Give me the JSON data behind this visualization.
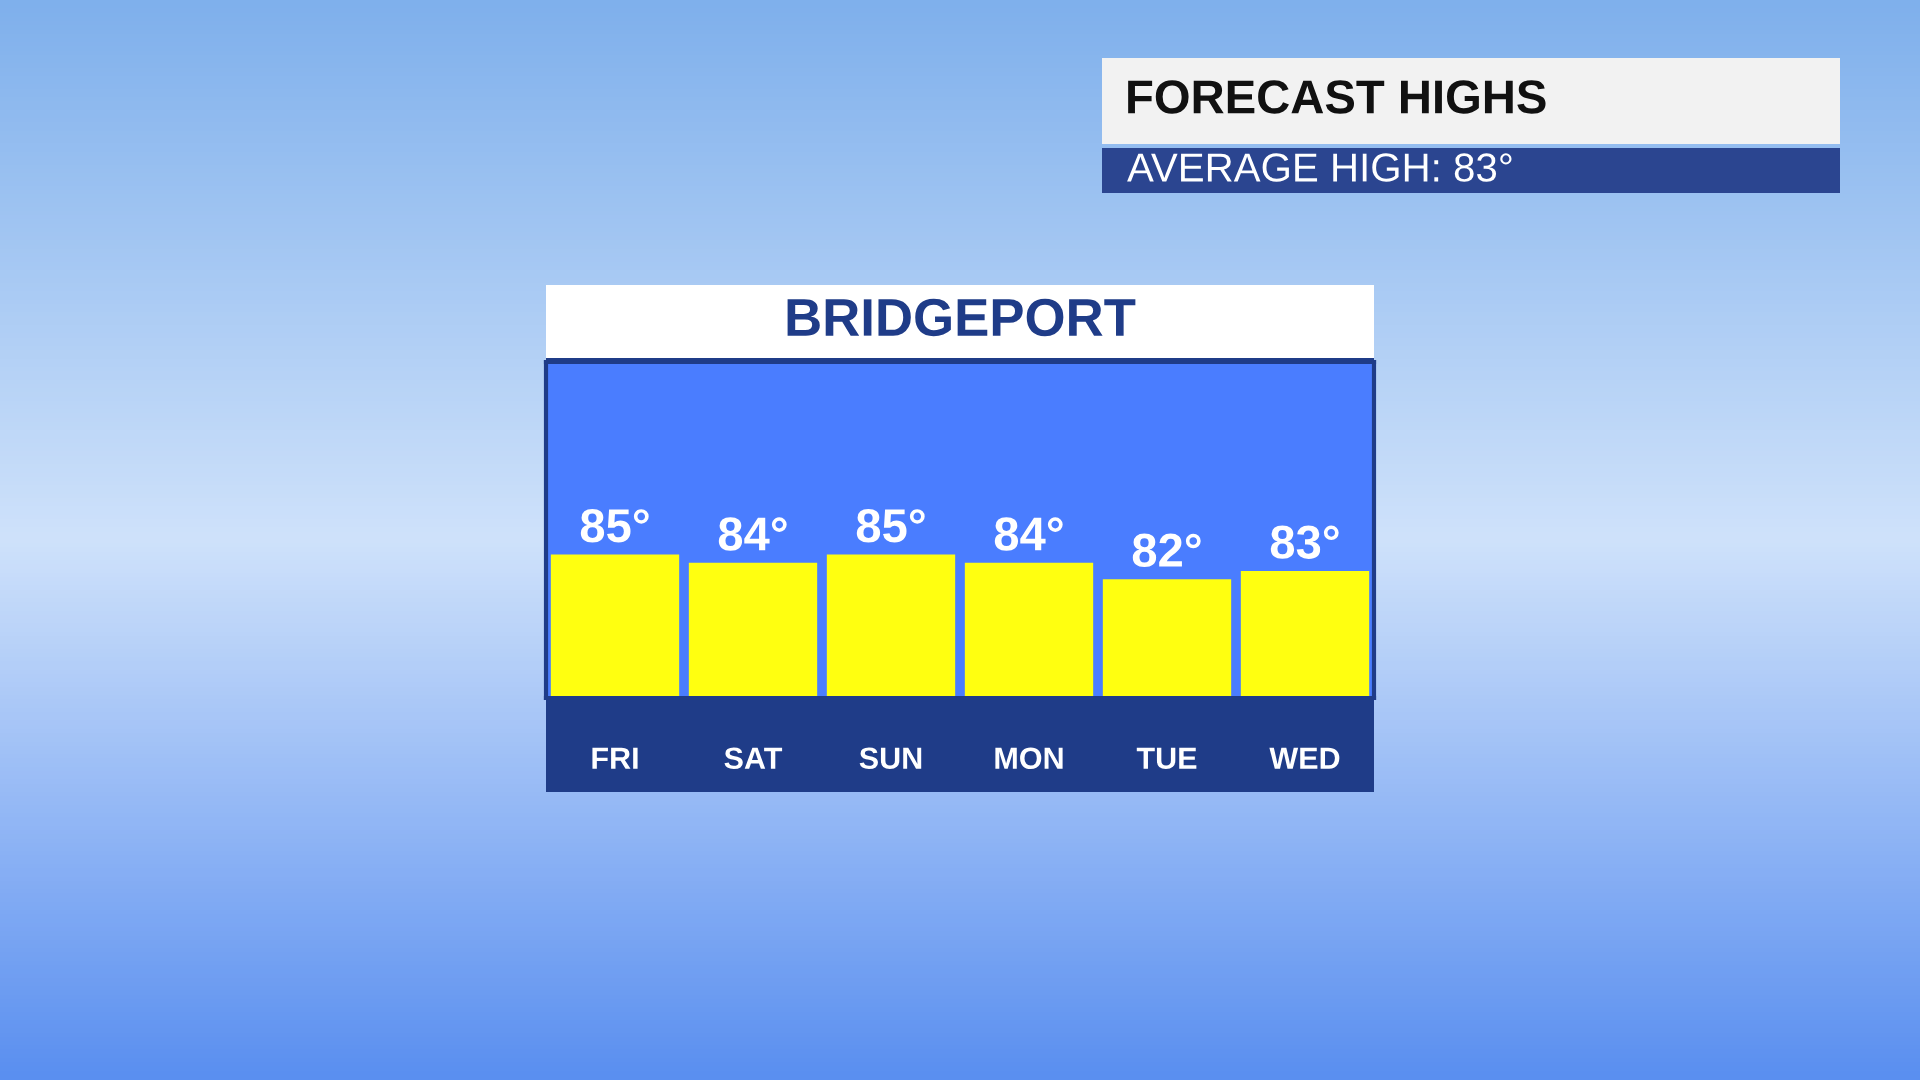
{
  "chart_data": {
    "type": "bar",
    "title": "BRIDGEPORT",
    "annotations": [
      "FORECAST HIGHS",
      "AVERAGE HIGH: 83°"
    ],
    "categories": [
      "FRI",
      "SAT",
      "SUN",
      "MON",
      "TUE",
      "WED"
    ],
    "values": [
      85,
      84,
      85,
      84,
      82,
      83
    ],
    "value_labels": [
      "85°",
      "84°",
      "85°",
      "84°",
      "82°",
      "83°"
    ],
    "color": "#ffff10",
    "ylim": [
      67.5,
      108.5
    ]
  }
}
